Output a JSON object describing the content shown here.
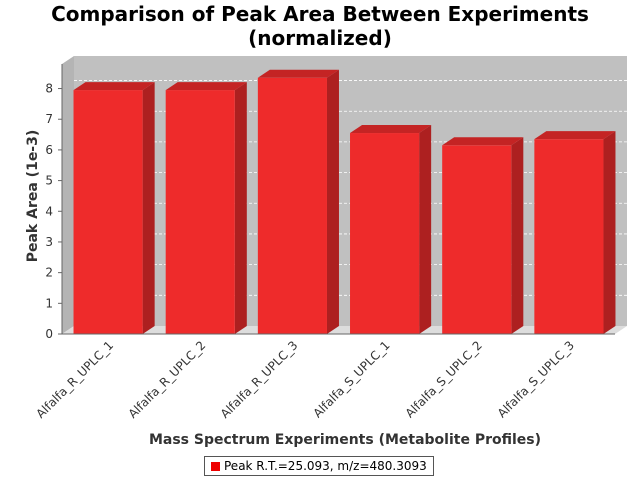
{
  "chart_data": {
    "type": "bar",
    "title_line1": "Comparison of Peak Area Between Experiments",
    "title_line2": "(normalized)",
    "xlabel": "Mass Spectrum Experiments (Metabolite Profiles)",
    "ylabel": "Peak Area (1e-3)",
    "categories": [
      "Alfalfa_R_UPLC_1",
      "Alfalfa_R_UPLC_2",
      "Alfalfa_R_UPLC_3",
      "Alfalfa_S_UPLC_1",
      "Alfalfa_S_UPLC_2",
      "Alfalfa_S_UPLC_3"
    ],
    "series": [
      {
        "name": "Peak R.T.=25.093, m/z=480.3093",
        "values": [
          7.95,
          7.95,
          8.35,
          6.55,
          6.15,
          6.35
        ]
      }
    ],
    "ylim": [
      0,
      8.8
    ],
    "yticks": [
      "0",
      "1",
      "2",
      "3",
      "4",
      "5",
      "6",
      "7",
      "8"
    ],
    "grid": true,
    "legend_position": "bottom",
    "colors": {
      "bar_front": "#ee2b2b",
      "bar_top": "#c42424",
      "bar_side": "#ad2020",
      "plot_bg": "#c0c0c0",
      "floor": "#dddddd"
    }
  }
}
